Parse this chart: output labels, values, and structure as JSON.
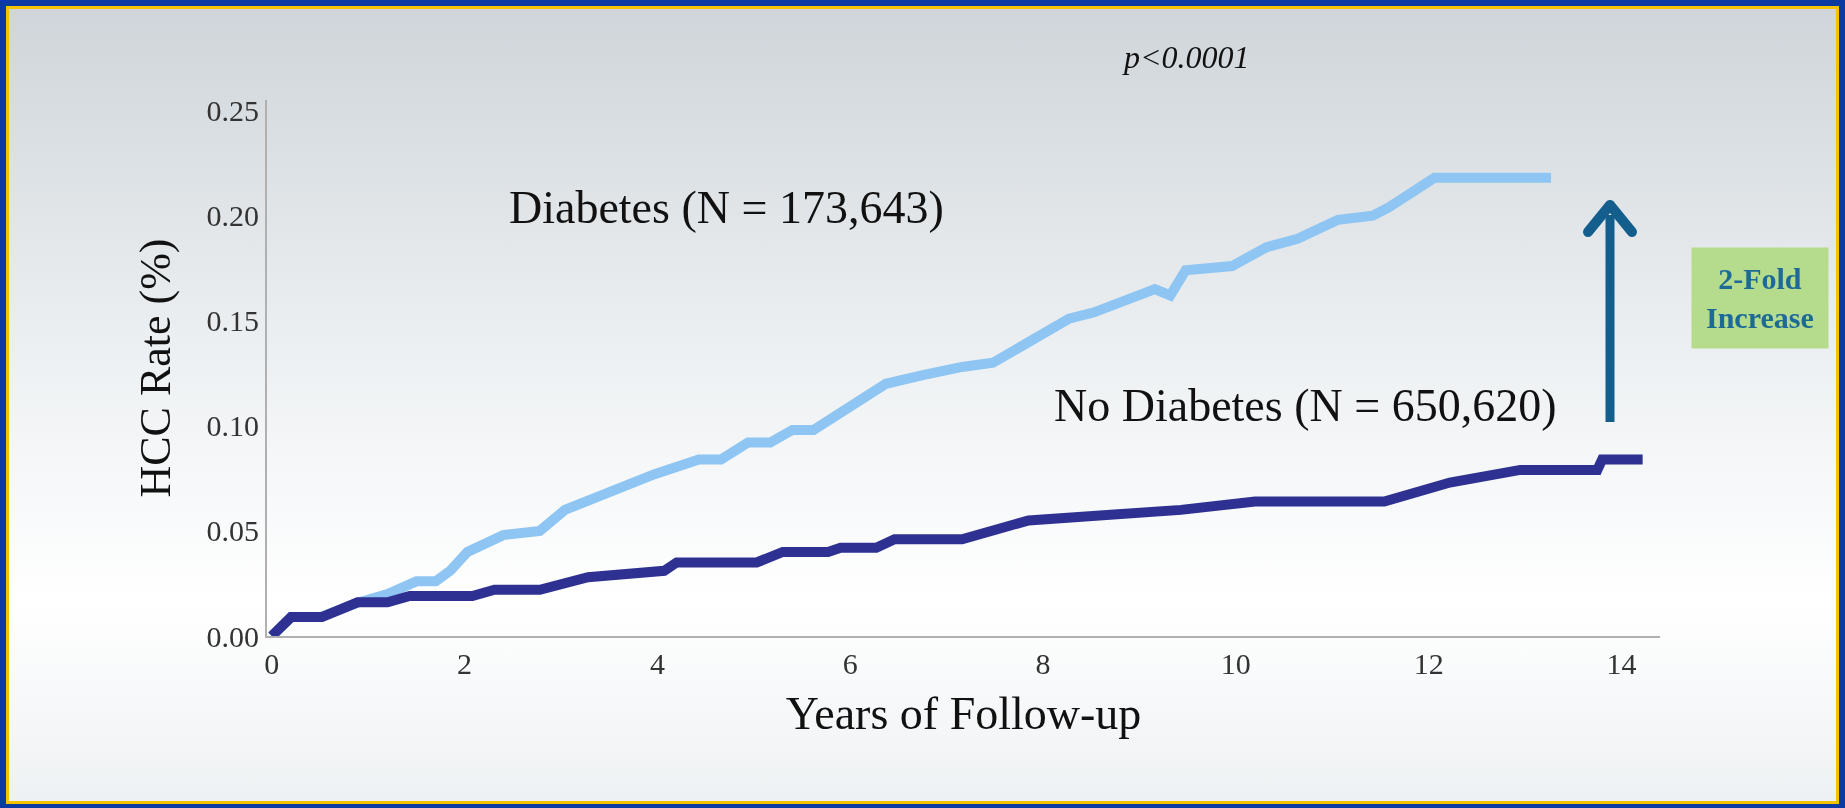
{
  "chart_data": {
    "type": "line",
    "xlabel": "Years of Follow-up",
    "ylabel": "HCC Rate (%)",
    "xlim": [
      -0.05,
      14.4
    ],
    "ylim": [
      0,
      0.255
    ],
    "xticks": [
      0,
      2,
      4,
      6,
      8,
      10,
      12,
      14
    ],
    "yticks": [
      {
        "value": 0,
        "label": "0.00"
      },
      {
        "value": 0.05,
        "label": "0.05"
      },
      {
        "value": 0.1,
        "label": "0.10"
      },
      {
        "value": 0.15,
        "label": "0.15"
      },
      {
        "value": 0.2,
        "label": "0.20"
      },
      {
        "value": 0.25,
        "label": "0.25"
      }
    ],
    "grid": false,
    "legend": false,
    "marker": "none",
    "line_style": "solid",
    "series": [
      {
        "name": "Diabetes (N = 173,643)",
        "color": "#8ec5f2",
        "x": [
          0,
          0.2,
          0.5,
          0.9,
          1.2,
          1.5,
          1.7,
          1.85,
          2.03,
          2.4,
          2.78,
          3.04,
          3.97,
          4.43,
          4.66,
          4.94,
          5.17,
          5.4,
          5.62,
          6.37,
          6.74,
          7.16,
          7.48,
          8.27,
          8.53,
          9.16,
          9.32,
          9.48,
          9.96,
          10.32,
          10.64,
          11.06,
          11.42,
          11.59,
          12.06,
          13.27
        ],
        "values": [
          0,
          0.009,
          0.009,
          0.016,
          0.02,
          0.026,
          0.026,
          0.031,
          0.04,
          0.048,
          0.05,
          0.06,
          0.077,
          0.084,
          0.084,
          0.092,
          0.092,
          0.098,
          0.098,
          0.12,
          0.124,
          0.128,
          0.13,
          0.151,
          0.154,
          0.165,
          0.162,
          0.174,
          0.176,
          0.185,
          0.189,
          0.198,
          0.2,
          0.204,
          0.218,
          0.218
        ]
      },
      {
        "name": "No Diabetes (N = 650,620)",
        "color": "#2e3192",
        "x": [
          0,
          0.2,
          0.52,
          0.89,
          1.2,
          1.43,
          2.08,
          2.31,
          2.78,
          3.28,
          4.07,
          4.2,
          5.03,
          5.3,
          5.77,
          5.9,
          6.27,
          6.46,
          7.16,
          7.85,
          9.43,
          10.2,
          11.54,
          12.22,
          12.95,
          13.75,
          13.8,
          14.22
        ],
        "values": [
          0,
          0.009,
          0.009,
          0.016,
          0.016,
          0.019,
          0.019,
          0.022,
          0.022,
          0.028,
          0.031,
          0.035,
          0.035,
          0.04,
          0.04,
          0.042,
          0.042,
          0.046,
          0.046,
          0.055,
          0.06,
          0.064,
          0.064,
          0.073,
          0.079,
          0.079,
          0.084,
          0.084
        ]
      }
    ],
    "annotations": [
      "p<0.0001",
      "2-Fold Increase"
    ]
  }
}
